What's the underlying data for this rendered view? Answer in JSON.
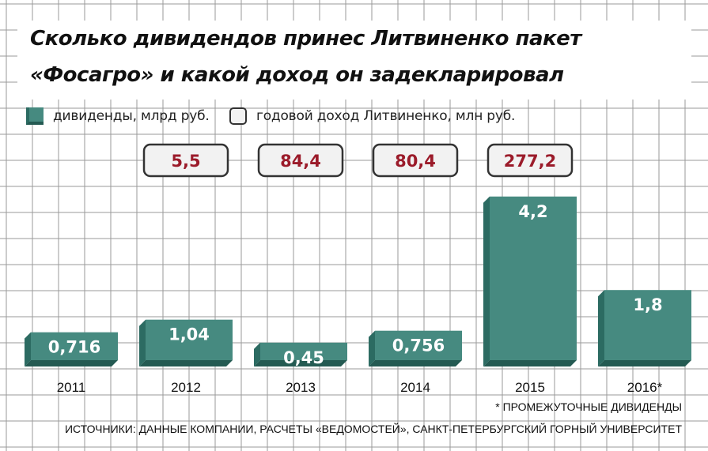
{
  "title": {
    "line1": "Сколько дивидендов принес Литвиненко пакет",
    "line2": "«Фосагро» и какой доход он задекларировал"
  },
  "legend": [
    {
      "label": "дивиденды, млрд руб.",
      "color": "#468a80"
    },
    {
      "label": "годовой доход Литвиненко, млн руб.",
      "color": "#f2f2f2"
    }
  ],
  "colors": {
    "bar_front": "#468a80",
    "bar_side": "#2c6b62",
    "bar_bottom": "#245a52",
    "income_text": "#9b1b2a",
    "income_box_border": "#333333",
    "income_box_fill": "#f2f2f2",
    "grid": "#9a9a9a"
  },
  "chart_data": {
    "type": "bar",
    "categories": [
      "2011",
      "2012",
      "2013",
      "2014",
      "2015",
      "2016*"
    ],
    "series": [
      {
        "name": "дивиденды, млрд руб.",
        "values": [
          0.716,
          1.04,
          0.45,
          0.756,
          4.2,
          1.8
        ],
        "labels": [
          "0,716",
          "1,04",
          "0,45",
          "0,756",
          "4,2",
          "1,8"
        ]
      },
      {
        "name": "годовой доход Литвиненко, млн руб.",
        "values": [
          null,
          5.5,
          84.4,
          80.4,
          277.2,
          null
        ],
        "labels": [
          "",
          "5,5",
          "84,4",
          "80,4",
          "277,2",
          ""
        ]
      }
    ],
    "ylim": [
      0,
      4.5
    ],
    "grid": true
  },
  "footnotes": {
    "note": "* ПРОМЕЖУТОЧНЫЕ ДИВИДЕНДЫ",
    "sources": "ИСТОЧНИКИ: ДАННЫЕ КОМПАНИИ, РАСЧЕТЫ «ВЕДОМОСТЕЙ», САНКТ-ПЕТЕРБУРГСКИЙ ГОРНЫЙ УНИВЕРСИТЕТ"
  }
}
